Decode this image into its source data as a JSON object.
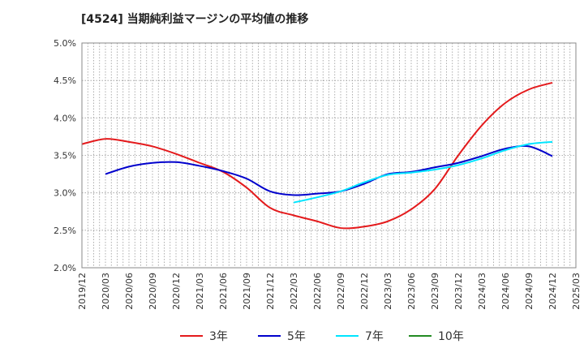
{
  "chart_data": {
    "type": "line",
    "title": "[4524]  当期純利益マージンの平均値の推移",
    "xlabel": "",
    "ylabel": "",
    "x_ticks": [
      "2019/12",
      "2020/03",
      "2020/06",
      "2020/09",
      "2020/12",
      "2021/03",
      "2021/06",
      "2021/09",
      "2021/12",
      "2022/03",
      "2022/06",
      "2022/09",
      "2022/12",
      "2023/03",
      "2023/06",
      "2023/09",
      "2023/12",
      "2024/03",
      "2024/06",
      "2024/09",
      "2024/12",
      "2025/03"
    ],
    "y_ticks": [
      "2.0%",
      "2.5%",
      "3.0%",
      "3.5%",
      "4.0%",
      "4.5%",
      "5.0%"
    ],
    "ylim": [
      2.0,
      5.0
    ],
    "grid": true,
    "legend_position": "bottom",
    "series": [
      {
        "name": "3年",
        "color": "#e41a1c",
        "x": [
          "2019/12",
          "2020/03",
          "2020/06",
          "2020/09",
          "2020/12",
          "2021/03",
          "2021/06",
          "2021/09",
          "2021/12",
          "2022/03",
          "2022/06",
          "2022/09",
          "2022/12",
          "2023/03",
          "2023/06",
          "2023/09",
          "2023/12",
          "2024/03",
          "2024/06",
          "2024/09",
          "2024/12"
        ],
        "values": [
          3.65,
          3.72,
          3.68,
          3.62,
          3.52,
          3.4,
          3.28,
          3.07,
          2.8,
          2.7,
          2.62,
          2.53,
          2.55,
          2.62,
          2.78,
          3.05,
          3.5,
          3.9,
          4.2,
          4.38,
          4.47
        ]
      },
      {
        "name": "5年",
        "color": "#0000cc",
        "x": [
          "2020/03",
          "2020/06",
          "2020/09",
          "2020/12",
          "2021/03",
          "2021/06",
          "2021/09",
          "2021/12",
          "2022/03",
          "2022/06",
          "2022/09",
          "2022/12",
          "2023/03",
          "2023/06",
          "2023/09",
          "2023/12",
          "2024/03",
          "2024/06",
          "2024/09",
          "2024/12"
        ],
        "values": [
          3.25,
          3.35,
          3.4,
          3.41,
          3.36,
          3.29,
          3.19,
          3.02,
          2.97,
          2.99,
          3.02,
          3.12,
          3.25,
          3.28,
          3.34,
          3.4,
          3.49,
          3.59,
          3.62,
          3.49
        ]
      },
      {
        "name": "7年",
        "color": "#00e5ff",
        "x": [
          "2022/03",
          "2022/06",
          "2022/09",
          "2022/12",
          "2023/03",
          "2023/06",
          "2023/09",
          "2023/12",
          "2024/03",
          "2024/06",
          "2024/09",
          "2024/12"
        ],
        "values": [
          2.87,
          2.94,
          3.02,
          3.14,
          3.24,
          3.27,
          3.31,
          3.37,
          3.46,
          3.57,
          3.65,
          3.68
        ]
      },
      {
        "name": "10年",
        "color": "#228b22",
        "x": [],
        "values": []
      }
    ]
  }
}
